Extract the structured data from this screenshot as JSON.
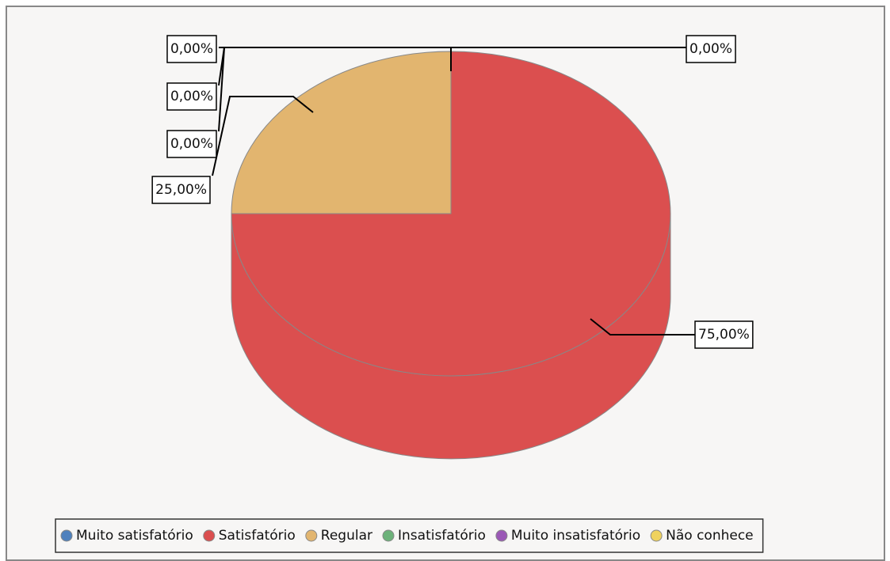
{
  "chart_data": {
    "type": "pie3d",
    "categories": [
      "Muito satisfatório",
      "Satisfatório",
      "Regular",
      "Insatisfatório",
      "Muito insatisfatório",
      "Não conhece"
    ],
    "values": [
      0,
      75,
      25,
      0,
      0,
      0
    ],
    "value_labels": [
      "0,00%",
      "75,00%",
      "25,00%",
      "0,00%",
      "0,00%",
      "0,00%"
    ],
    "colors": [
      "#4f81bd",
      "#db4f4f",
      "#e2b56f",
      "#6db27a",
      "#9b59b6",
      "#efd25e"
    ]
  }
}
